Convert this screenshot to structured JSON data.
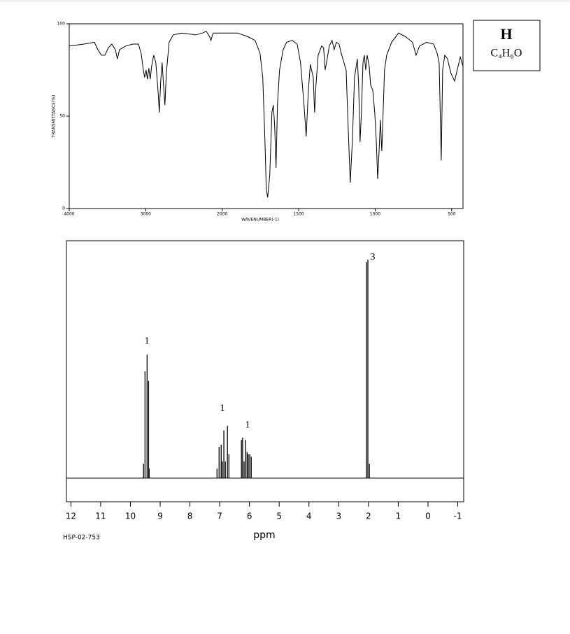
{
  "header": {
    "letter": "H",
    "formula": "C₄H₆O"
  },
  "chart_data": [
    {
      "type": "line",
      "xlabel": "WAVENUMBER(-1)",
      "ylabel": "TRANSMITTANCE(%)",
      "color": "#000000",
      "x": [
        4000,
        3808,
        3671,
        3626,
        3580,
        3534,
        3489,
        3443,
        3397,
        3370,
        3343,
        3260,
        3169,
        3096,
        3060,
        3032,
        3014,
        2996,
        2977,
        2959,
        2941,
        2923,
        2895,
        2868,
        2840,
        2822,
        2804,
        2786,
        2767,
        2749,
        2731,
        2694,
        2640,
        2530,
        2347,
        2256,
        2210,
        2165,
        2147,
        2119,
        1991,
        1899,
        1831,
        1785,
        1753,
        1735,
        1721,
        1712,
        1703,
        1689,
        1675,
        1666,
        1657,
        1648,
        1639,
        1625,
        1602,
        1579,
        1543,
        1510,
        1488,
        1465,
        1451,
        1437,
        1424,
        1405,
        1396,
        1387,
        1373,
        1350,
        1337,
        1327,
        1314,
        1300,
        1282,
        1268,
        1254,
        1236,
        1222,
        1204,
        1190,
        1177,
        1163,
        1149,
        1135,
        1117,
        1108,
        1099,
        1090,
        1080,
        1071,
        1062,
        1053,
        1039,
        1030,
        1016,
        1003,
        993,
        984,
        975,
        966,
        957,
        948,
        939,
        925,
        893,
        847,
        801,
        756,
        733,
        710,
        664,
        618,
        595,
        582,
        568,
        559,
        545,
        527,
        504,
        481,
        458,
        444,
        426
      ],
      "values": [
        88,
        89,
        90,
        86,
        83,
        83,
        87,
        89,
        86,
        81,
        86,
        88,
        89,
        89,
        84,
        75,
        71,
        75,
        70,
        76,
        70,
        77,
        83,
        79,
        64,
        52,
        69,
        79,
        67,
        56,
        73,
        90,
        94,
        95,
        94,
        95,
        96,
        93,
        91,
        95,
        95,
        95,
        93,
        91,
        84,
        71,
        37,
        11,
        6,
        18,
        52,
        56,
        45,
        22,
        56,
        75,
        86,
        90,
        91,
        89,
        79,
        56,
        39,
        64,
        78,
        71,
        52,
        67,
        83,
        88,
        87,
        75,
        81,
        88,
        91,
        86,
        90,
        89,
        84,
        79,
        75,
        45,
        14,
        37,
        71,
        81,
        67,
        36,
        52,
        79,
        83,
        75,
        83,
        77,
        67,
        64,
        52,
        37,
        16,
        30,
        48,
        31,
        52,
        75,
        83,
        90,
        95,
        93,
        90,
        83,
        88,
        90,
        89,
        84,
        79,
        26,
        75,
        83,
        81,
        73,
        69,
        77,
        82,
        77
      ],
      "xlim": [
        4000,
        426
      ],
      "xticks": [
        4000,
        3000,
        2000,
        1500,
        1000,
        500
      ],
      "ylim": [
        0,
        100
      ],
      "yticks": [
        0,
        50,
        100
      ]
    },
    {
      "type": "stick",
      "xlabel": "ppm",
      "source": "HSP-02-753",
      "color": "#000000",
      "x": [
        9.56,
        9.51,
        9.44,
        9.39,
        9.37,
        7.09,
        7.02,
        6.95,
        6.91,
        6.86,
        6.81,
        6.74,
        6.69,
        6.27,
        6.23,
        6.18,
        6.13,
        6.08,
        6.04,
        5.99,
        5.94,
        2.07,
        2.02,
        1.97
      ],
      "values": [
        6,
        45,
        52,
        41,
        4,
        4,
        13,
        14,
        7,
        20,
        7,
        22,
        10,
        16,
        17,
        7,
        16,
        11,
        10,
        10,
        9,
        91,
        92,
        6
      ],
      "annotations": [
        1,
        1,
        1,
        3
      ],
      "xlim": [
        12.15,
        -1.2
      ],
      "xticks": [
        12,
        11,
        10,
        9,
        8,
        7,
        6,
        5,
        4,
        3,
        2,
        1,
        0,
        -1
      ],
      "ylim": [
        -10,
        100
      ]
    }
  ]
}
